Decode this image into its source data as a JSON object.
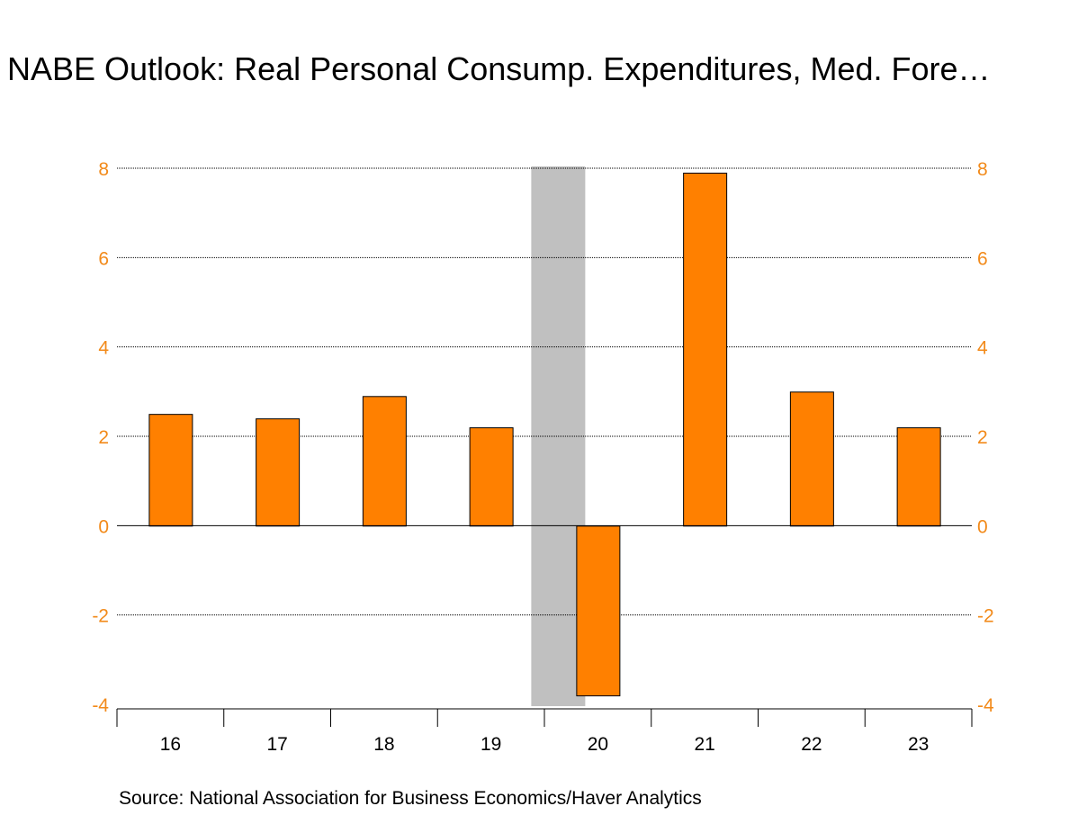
{
  "chart_data": {
    "type": "bar",
    "title": "NABE Outlook: Real Personal Consump. Expenditures, Med. Fore…",
    "categories": [
      "16",
      "17",
      "18",
      "19",
      "20",
      "21",
      "22",
      "23"
    ],
    "values": [
      2.5,
      2.4,
      2.9,
      2.2,
      -3.8,
      7.9,
      3.0,
      2.2
    ],
    "ylim": [
      -4,
      8
    ],
    "yticks": [
      -4,
      -2,
      0,
      2,
      4,
      6,
      8
    ],
    "ytick_labels": [
      "-4",
      "-2",
      "0",
      "2",
      "4",
      "6",
      "8"
    ],
    "y_axes": [
      "left",
      "right"
    ],
    "grid": true,
    "shaded_category": "20",
    "source": "Source:  National Association for Business Economics/Haver Analytics",
    "colors": {
      "bar": "#ff8000",
      "bar_border": "#000000",
      "tick_labels": "#f28a1a",
      "shade": "#c0c0c0",
      "grid": "#000000"
    }
  }
}
